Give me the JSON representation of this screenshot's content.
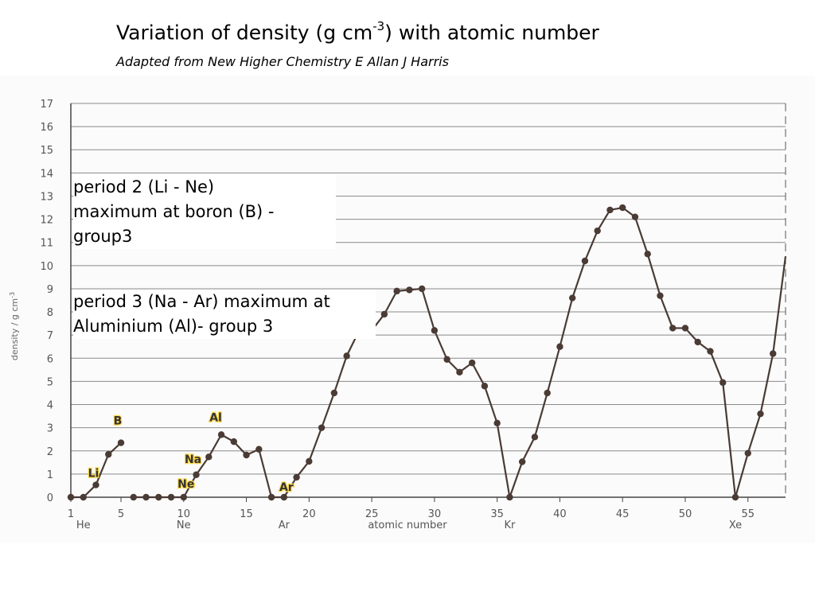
{
  "title": {
    "main": "Variation of density (g cm",
    "sup": "-3",
    "rest": ") with atomic number"
  },
  "subtitle": "Adapted from New Higher Chemistry E Allan J Harris",
  "annotations": {
    "period2_line1": "period 2 (Li - Ne)",
    "period2_line2": "maximum at boron (B)  -",
    "period2_line3": "group3",
    "period3_line1": "period 3 (Na - Ar) maximum at",
    "period3_line2": "Aluminium (Al)- group 3"
  },
  "chart_data": {
    "type": "line",
    "ylabel": "density / g cm",
    "ylabel_sup": "-3",
    "xlabel": "atomic number",
    "xlim": [
      1,
      58
    ],
    "ylim": [
      0,
      17
    ],
    "x_ticks": [
      1,
      5,
      10,
      15,
      20,
      25,
      30,
      35,
      40,
      45,
      50,
      55
    ],
    "y_ticks": [
      0,
      1,
      2,
      3,
      4,
      5,
      6,
      7,
      8,
      9,
      10,
      11,
      12,
      13,
      14,
      15,
      16,
      17
    ],
    "element_ticks": [
      {
        "x": 2,
        "label": "He"
      },
      {
        "x": 10,
        "label": "Ne"
      },
      {
        "x": 18,
        "label": "Ar"
      },
      {
        "x": 36,
        "label": "Kr"
      },
      {
        "x": 54,
        "label": "Xe"
      }
    ],
    "point_labels": [
      {
        "x": 3,
        "label": "Li"
      },
      {
        "x": 5,
        "label": "B"
      },
      {
        "x": 10,
        "label": "Ne"
      },
      {
        "x": 11,
        "label": "Na"
      },
      {
        "x": 13,
        "label": "Al"
      },
      {
        "x": 18,
        "label": "Ar"
      }
    ],
    "segments": [
      {
        "x": [
          1,
          2,
          3,
          4,
          5
        ],
        "y": [
          0.0,
          0.0,
          0.53,
          1.85,
          2.35
        ]
      },
      {
        "x": [
          6,
          7,
          8,
          9,
          10,
          11,
          12,
          13,
          14,
          15,
          16,
          17,
          18,
          19,
          20,
          21,
          22,
          23,
          24,
          25,
          26,
          27,
          28,
          29,
          30,
          31,
          32,
          33,
          34,
          35,
          36,
          37,
          38,
          39,
          40,
          41,
          42,
          43,
          44,
          45,
          46,
          47,
          48,
          49,
          50,
          51,
          52,
          53,
          54,
          55,
          56,
          57,
          58
        ],
        "y": [
          0.0,
          0.0,
          0.0,
          0.0,
          0.0,
          0.97,
          1.74,
          2.7,
          2.4,
          1.82,
          2.07,
          0.0,
          0.0,
          0.86,
          1.55,
          3.0,
          4.5,
          6.1,
          7.2,
          7.2,
          7.9,
          8.9,
          8.95,
          9.0,
          7.2,
          5.95,
          5.4,
          5.8,
          4.8,
          3.2,
          0.0,
          1.53,
          2.6,
          4.5,
          6.5,
          8.6,
          10.2,
          11.5,
          12.4,
          12.5,
          12.1,
          10.5,
          8.7,
          7.3,
          7.3,
          6.7,
          6.3,
          4.95,
          0.0,
          1.9,
          3.6,
          6.2,
          10.4
        ]
      }
    ],
    "grid": true,
    "legend": "none"
  }
}
